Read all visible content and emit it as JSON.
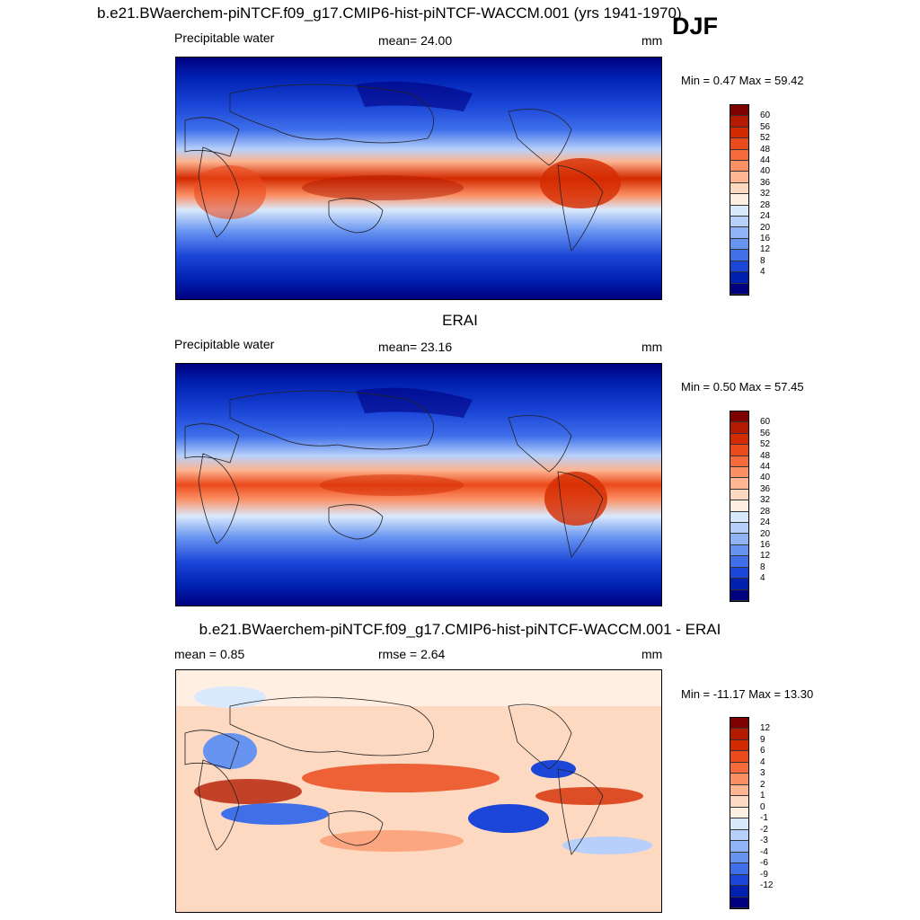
{
  "header": {
    "title": "b.e21.BWaerchem-piNTCF.f09_g17.CMIP6-hist-piNTCF-WACCM.001 (yrs 1941-1970)",
    "season": "DJF"
  },
  "panels": [
    {
      "id": "model",
      "title": "",
      "left_label": "Precipitable water",
      "center_label": "mean=  24.00",
      "units": "mm",
      "minmax": "Min =   0.47 Max =  59.42",
      "colorbar": {
        "labels": [
          "60",
          "56",
          "52",
          "48",
          "44",
          "40",
          "36",
          "32",
          "28",
          "24",
          "20",
          "16",
          "12",
          "8",
          "4"
        ],
        "colors": [
          "#7f0000",
          "#b41a00",
          "#d42a00",
          "#eb4a1c",
          "#f56a3b",
          "#fb9064",
          "#fdb592",
          "#fdd9c2",
          "#ffefe2",
          "#d9e9fc",
          "#b7d0fb",
          "#90b3f7",
          "#6793f1",
          "#3f70ea",
          "#1b46d8",
          "#0020b0",
          "#000080"
        ]
      }
    },
    {
      "id": "obs",
      "title": "ERAI",
      "left_label": "Precipitable water",
      "center_label": "mean=  23.16",
      "units": "mm",
      "minmax": "Min =   0.50 Max =  57.45",
      "colorbar": {
        "labels": [
          "60",
          "56",
          "52",
          "48",
          "44",
          "40",
          "36",
          "32",
          "28",
          "24",
          "20",
          "16",
          "12",
          "8",
          "4"
        ],
        "colors": [
          "#7f0000",
          "#b41a00",
          "#d42a00",
          "#eb4a1c",
          "#f56a3b",
          "#fb9064",
          "#fdb592",
          "#fdd9c2",
          "#ffefe2",
          "#d9e9fc",
          "#b7d0fb",
          "#90b3f7",
          "#6793f1",
          "#3f70ea",
          "#1b46d8",
          "#0020b0",
          "#000080"
        ]
      }
    },
    {
      "id": "diff",
      "title": "b.e21.BWaerchem-piNTCF.f09_g17.CMIP6-hist-piNTCF-WACCM.001 - ERAI",
      "left_label": "mean =   0.85",
      "center_label": "rmse =   2.64",
      "units": "mm",
      "minmax": "Min = -11.17 Max =  13.30",
      "colorbar": {
        "labels": [
          "12",
          "9",
          "6",
          "4",
          "3",
          "2",
          "1",
          "0",
          "-1",
          "-2",
          "-3",
          "-4",
          "-6",
          "-9",
          "-12"
        ],
        "colors": [
          "#7f0000",
          "#b41a00",
          "#d42a00",
          "#eb4a1c",
          "#f56a3b",
          "#fb9064",
          "#fdb592",
          "#fdd9c2",
          "#ffefe2",
          "#d9e9fc",
          "#b7d0fb",
          "#90b3f7",
          "#6793f1",
          "#3f70ea",
          "#1b46d8",
          "#0020b0",
          "#000080"
        ]
      }
    }
  ]
}
